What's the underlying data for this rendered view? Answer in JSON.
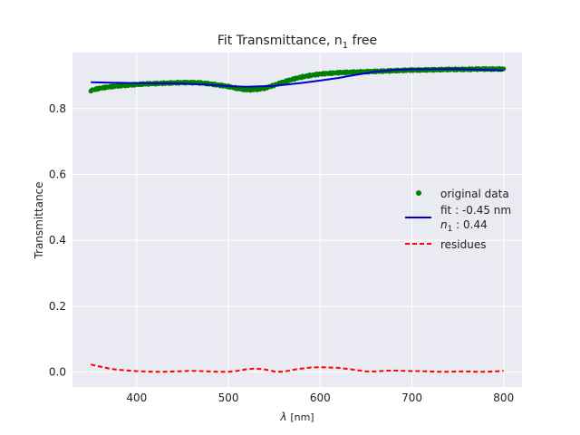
{
  "chart_data": {
    "type": "line",
    "title": "Fit Transmittance, n",
    "title_sub": "1",
    "title_suffix": " free",
    "xlabel": "λ",
    "xlabel_unit": "[nm]",
    "ylabel": "Transmittance",
    "xlim": [
      330,
      820
    ],
    "ylim": [
      -0.045,
      0.97
    ],
    "xticks": [
      400,
      500,
      600,
      700,
      800
    ],
    "xtick_labels": [
      "400",
      "500",
      "600",
      "700",
      "800"
    ],
    "yticks": [
      0.0,
      0.2,
      0.4,
      0.6,
      0.8
    ],
    "ytick_labels": [
      "0.0",
      "0.2",
      "0.4",
      "0.6",
      "0.8"
    ],
    "grid": true,
    "legend_position": "center-right",
    "series": [
      {
        "name": "original data",
        "kind": "scatter",
        "color": "#008000",
        "x": [
          350,
          360,
          370,
          380,
          390,
          400,
          410,
          420,
          430,
          440,
          450,
          460,
          470,
          480,
          490,
          500,
          510,
          520,
          530,
          540,
          550,
          560,
          570,
          580,
          590,
          600,
          610,
          620,
          630,
          640,
          650,
          660,
          670,
          680,
          690,
          700,
          710,
          720,
          730,
          740,
          750,
          760,
          770,
          780,
          790,
          800
        ],
        "y": [
          0.855,
          0.862,
          0.866,
          0.869,
          0.871,
          0.873,
          0.875,
          0.876,
          0.877,
          0.878,
          0.879,
          0.879,
          0.878,
          0.875,
          0.871,
          0.867,
          0.861,
          0.857,
          0.858,
          0.862,
          0.871,
          0.881,
          0.889,
          0.896,
          0.901,
          0.905,
          0.907,
          0.909,
          0.91,
          0.911,
          0.912,
          0.913,
          0.914,
          0.915,
          0.916,
          0.917,
          0.917,
          0.918,
          0.918,
          0.919,
          0.919,
          0.919,
          0.92,
          0.92,
          0.92,
          0.92
        ]
      },
      {
        "name": "fit : -0.45 nm",
        "name_line2_prefix": "n",
        "name_line2_sub": "1",
        "name_line2_suffix": " : 0.44",
        "kind": "line",
        "style": "solid",
        "color": "#0000cd",
        "x": [
          350,
          400,
          450,
          480,
          500,
          520,
          550,
          580,
          600,
          620,
          640,
          660,
          680,
          700,
          750,
          800
        ],
        "y": [
          0.88,
          0.877,
          0.876,
          0.872,
          0.868,
          0.866,
          0.869,
          0.878,
          0.885,
          0.893,
          0.903,
          0.912,
          0.917,
          0.919,
          0.92,
          0.916
        ]
      },
      {
        "name": "residues",
        "kind": "line",
        "style": "dashed",
        "color": "#ff0000",
        "x": [
          350,
          360,
          370,
          380,
          390,
          400,
          410,
          420,
          430,
          440,
          450,
          460,
          470,
          480,
          490,
          500,
          510,
          520,
          530,
          540,
          550,
          560,
          570,
          580,
          590,
          600,
          610,
          620,
          630,
          640,
          650,
          660,
          670,
          680,
          690,
          700,
          710,
          720,
          730,
          740,
          750,
          760,
          770,
          780,
          790,
          800
        ],
        "y": [
          0.023,
          0.017,
          0.011,
          0.007,
          0.005,
          0.003,
          0.002,
          0.001,
          0.001,
          0.002,
          0.003,
          0.004,
          0.003,
          0.002,
          0.001,
          0.001,
          0.004,
          0.009,
          0.011,
          0.008,
          0.002,
          0.001,
          0.007,
          0.011,
          0.014,
          0.015,
          0.014,
          0.013,
          0.01,
          0.006,
          0.002,
          0.002,
          0.004,
          0.005,
          0.004,
          0.003,
          0.003,
          0.002,
          0.001,
          0.001,
          0.002,
          0.002,
          0.001,
          0.001,
          0.002,
          0.004
        ]
      }
    ]
  }
}
